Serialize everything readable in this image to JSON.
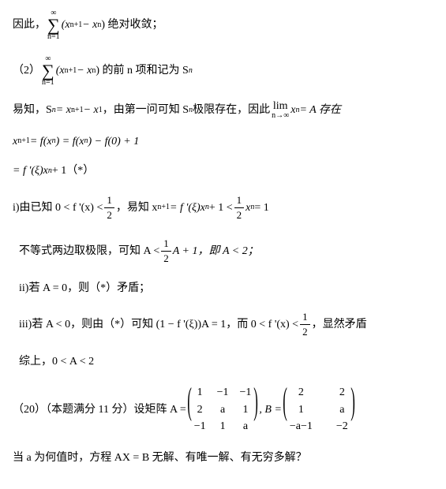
{
  "line1_a": "因此，",
  "sum_top": "∞",
  "sum_bot": "n=1",
  "line1_expr": "(x",
  "sub_np1": "n+1",
  "line1_mid": " − x",
  "sub_n": "n",
  "line1_b": ") 绝对收敛；",
  "line2_a": "（2）",
  "line2_b": ") 的前 n 项和记为 S",
  "line3_a": "易知，S",
  "line3_b": " = x",
  "line3_c": " − x",
  "sub_1": "1",
  "line3_d": "，由第一问可知 S",
  "line3_e": " 极限存在，因此",
  "lim_t": "lim",
  "lim_b": "n→∞",
  "line3_f": " x",
  "line3_g": " = A 存在",
  "line4_a": "x",
  "line4_b": " = f(x",
  "line4_c": ") = f(x",
  "line4_d": ") − f(0) + 1",
  "line5": "= f '(ξ)x",
  "line5_b": " + 1（*）",
  "line6_a": "i)由已知 0 < f '(x) < ",
  "half_num": "1",
  "half_den": "2",
  "line6_b": "，易知 x",
  "line6_c": " = f '(ξ)x",
  "line6_d": " + 1 < ",
  "line6_e": " x",
  "line6_f": " = 1",
  "line7_a": "不等式两边取极限，可知 A < ",
  "line7_b": " A + 1，即 A < 2；",
  "line8": "ii)若 A = 0，则（*）矛盾；",
  "line9_a": "iii)若 A < 0，则由（*）可知 (1 − f '(ξ))A = 1，而 0 < f '(x) < ",
  "line9_b": "，显然矛盾",
  "line10": "综上，0 < A < 2",
  "line11_a": "（20）（本题满分 11 分）设矩阵 A = ",
  "line11_b": ", B = ",
  "matA": [
    "1",
    "−1",
    "−1",
    "2",
    "a",
    "1",
    "−1",
    "1",
    "a"
  ],
  "matB": [
    "2",
    "2",
    "1",
    "a",
    "−a−1",
    "−2"
  ],
  "line12": "当 a 为何值时，方程 AX = B 无解、有唯一解、有无穷多解？"
}
